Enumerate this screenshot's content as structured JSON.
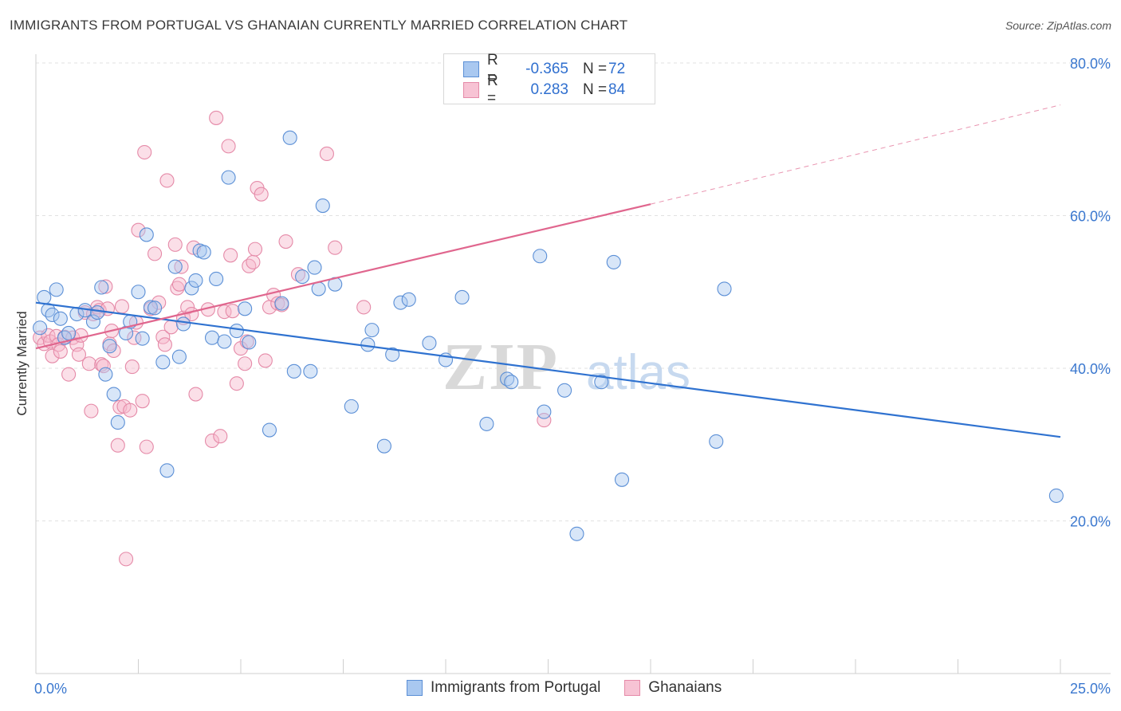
{
  "title": "IMMIGRANTS FROM PORTUGAL VS GHANAIAN CURRENTLY MARRIED CORRELATION CHART",
  "source": "Source: ZipAtlas.com",
  "watermark": {
    "zip": "ZIP",
    "atlas": "atlas"
  },
  "legend_top": [
    {
      "r_label": "R =",
      "r_value": "-0.365",
      "n_label": "N =",
      "n_value": "72"
    },
    {
      "r_label": "R =",
      "r_value": "0.283",
      "n_label": "N =",
      "n_value": "84"
    }
  ],
  "colors": {
    "blue_fill": "#a9c8f0",
    "blue_stroke": "#5b8fd6",
    "blue_line": "#2f72d0",
    "pink_fill": "#f7b8cc",
    "pink_stroke": "#e58aa8",
    "pink_line": "#e0668e",
    "tick_label": "#3b78cf",
    "grid": "#e2e2e2"
  },
  "chart_data": {
    "type": "scatter",
    "title": "IMMIGRANTS FROM PORTUGAL VS GHANAIAN CURRENTLY MARRIED CORRELATION CHART",
    "xlabel": "",
    "ylabel": "Currently Married",
    "xlim": [
      0,
      25
    ],
    "ylim": [
      0,
      80
    ],
    "x_tick_labels": [
      "0.0%",
      "25.0%"
    ],
    "y_ticks": [
      20,
      40,
      60,
      80
    ],
    "y_tick_labels": [
      "20.0%",
      "40.0%",
      "60.0%",
      "80.0%"
    ],
    "grid": true,
    "legend_position": "top-center",
    "series": [
      {
        "name": "Immigrants from Portugal",
        "color": "#a9c8f0",
        "trend": {
          "x": [
            0,
            25
          ],
          "y": [
            48.6,
            31.0
          ],
          "dashed_from": null
        },
        "points": [
          [
            0.1,
            45.3
          ],
          [
            0.2,
            49.3
          ],
          [
            0.3,
            47.6
          ],
          [
            0.4,
            47.0
          ],
          [
            0.5,
            50.3
          ],
          [
            0.6,
            46.5
          ],
          [
            0.7,
            44.0
          ],
          [
            0.8,
            44.6
          ],
          [
            1.0,
            47.1
          ],
          [
            1.2,
            47.6
          ],
          [
            1.4,
            46.1
          ],
          [
            1.5,
            47.3
          ],
          [
            1.6,
            50.6
          ],
          [
            1.7,
            39.2
          ],
          [
            1.8,
            42.9
          ],
          [
            1.9,
            36.6
          ],
          [
            2.0,
            32.9
          ],
          [
            2.2,
            44.6
          ],
          [
            2.3,
            46.1
          ],
          [
            2.5,
            50.0
          ],
          [
            2.6,
            43.9
          ],
          [
            2.7,
            57.5
          ],
          [
            2.8,
            48.0
          ],
          [
            2.9,
            47.9
          ],
          [
            3.1,
            40.8
          ],
          [
            3.2,
            26.6
          ],
          [
            3.4,
            53.3
          ],
          [
            3.5,
            41.5
          ],
          [
            3.6,
            45.8
          ],
          [
            3.8,
            50.5
          ],
          [
            3.9,
            51.5
          ],
          [
            4.0,
            55.4
          ],
          [
            4.1,
            55.2
          ],
          [
            4.3,
            44.0
          ],
          [
            4.4,
            51.7
          ],
          [
            4.6,
            43.5
          ],
          [
            4.7,
            65.0
          ],
          [
            4.9,
            44.9
          ],
          [
            5.1,
            47.8
          ],
          [
            5.2,
            43.4
          ],
          [
            5.7,
            31.9
          ],
          [
            6.0,
            48.5
          ],
          [
            6.2,
            70.2
          ],
          [
            6.3,
            39.6
          ],
          [
            6.5,
            52.0
          ],
          [
            6.7,
            39.6
          ],
          [
            6.8,
            53.2
          ],
          [
            6.9,
            50.4
          ],
          [
            7.0,
            61.3
          ],
          [
            7.3,
            51.0
          ],
          [
            7.7,
            35.0
          ],
          [
            8.1,
            43.1
          ],
          [
            8.2,
            45.0
          ],
          [
            8.5,
            29.8
          ],
          [
            8.7,
            41.8
          ],
          [
            8.9,
            48.6
          ],
          [
            9.1,
            49.0
          ],
          [
            9.6,
            43.3
          ],
          [
            10.0,
            41.1
          ],
          [
            10.4,
            49.3
          ],
          [
            11.0,
            32.7
          ],
          [
            11.5,
            38.6
          ],
          [
            11.6,
            38.2
          ],
          [
            12.3,
            54.7
          ],
          [
            12.4,
            34.3
          ],
          [
            12.9,
            37.1
          ],
          [
            13.2,
            18.3
          ],
          [
            13.8,
            38.2
          ],
          [
            14.1,
            53.9
          ],
          [
            14.3,
            25.4
          ],
          [
            16.6,
            30.4
          ],
          [
            16.8,
            50.4
          ],
          [
            24.9,
            23.3
          ]
        ]
      },
      {
        "name": "Ghanaians",
        "color": "#f7b8cc",
        "trend": {
          "x": [
            0,
            15
          ],
          "y": [
            42.6,
            61.5
          ],
          "dashed_to": [
            25,
            74.5
          ]
        },
        "points": [
          [
            0.1,
            44.0
          ],
          [
            0.2,
            43.2
          ],
          [
            0.3,
            44.3
          ],
          [
            0.35,
            43.5
          ],
          [
            0.4,
            41.6
          ],
          [
            0.5,
            44.2
          ],
          [
            0.55,
            43.1
          ],
          [
            0.6,
            42.2
          ],
          [
            0.7,
            44.1
          ],
          [
            0.8,
            39.2
          ],
          [
            0.9,
            44.0
          ],
          [
            1.0,
            43.1
          ],
          [
            1.05,
            41.8
          ],
          [
            1.1,
            44.3
          ],
          [
            1.2,
            47.3
          ],
          [
            1.3,
            40.6
          ],
          [
            1.35,
            34.4
          ],
          [
            1.4,
            47.1
          ],
          [
            1.5,
            48.0
          ],
          [
            1.55,
            47.6
          ],
          [
            1.6,
            40.5
          ],
          [
            1.65,
            40.3
          ],
          [
            1.7,
            50.7
          ],
          [
            1.75,
            47.8
          ],
          [
            1.8,
            43.2
          ],
          [
            1.85,
            44.9
          ],
          [
            1.9,
            42.3
          ],
          [
            2.0,
            29.9
          ],
          [
            2.05,
            34.9
          ],
          [
            2.1,
            48.1
          ],
          [
            2.15,
            35.0
          ],
          [
            2.2,
            15.0
          ],
          [
            2.3,
            34.5
          ],
          [
            2.35,
            40.2
          ],
          [
            2.4,
            44.0
          ],
          [
            2.45,
            46.0
          ],
          [
            2.5,
            58.1
          ],
          [
            2.6,
            35.7
          ],
          [
            2.65,
            68.3
          ],
          [
            2.7,
            29.7
          ],
          [
            2.8,
            47.8
          ],
          [
            2.9,
            55.0
          ],
          [
            3.0,
            48.6
          ],
          [
            3.1,
            44.1
          ],
          [
            3.15,
            43.1
          ],
          [
            3.2,
            64.6
          ],
          [
            3.3,
            45.4
          ],
          [
            3.4,
            56.2
          ],
          [
            3.45,
            50.5
          ],
          [
            3.5,
            51.0
          ],
          [
            3.55,
            53.3
          ],
          [
            3.6,
            46.6
          ],
          [
            3.7,
            48.0
          ],
          [
            3.8,
            47.1
          ],
          [
            3.85,
            55.8
          ],
          [
            3.9,
            36.6
          ],
          [
            4.2,
            47.7
          ],
          [
            4.3,
            30.5
          ],
          [
            4.4,
            72.8
          ],
          [
            4.5,
            31.1
          ],
          [
            4.6,
            47.4
          ],
          [
            4.7,
            69.1
          ],
          [
            4.75,
            54.8
          ],
          [
            4.8,
            47.5
          ],
          [
            4.9,
            38.0
          ],
          [
            5.0,
            42.6
          ],
          [
            5.1,
            40.6
          ],
          [
            5.15,
            43.5
          ],
          [
            5.2,
            53.4
          ],
          [
            5.3,
            53.9
          ],
          [
            5.35,
            55.6
          ],
          [
            5.4,
            63.6
          ],
          [
            5.5,
            62.8
          ],
          [
            5.6,
            41.0
          ],
          [
            5.7,
            48.0
          ],
          [
            5.8,
            49.6
          ],
          [
            5.9,
            48.5
          ],
          [
            6.0,
            48.3
          ],
          [
            6.1,
            56.6
          ],
          [
            6.4,
            52.3
          ],
          [
            7.1,
            68.1
          ],
          [
            7.3,
            55.8
          ],
          [
            8.0,
            48.0
          ],
          [
            12.4,
            33.2
          ]
        ]
      }
    ]
  },
  "bottom_legend": [
    "Immigrants from Portugal",
    "Ghanaians"
  ]
}
